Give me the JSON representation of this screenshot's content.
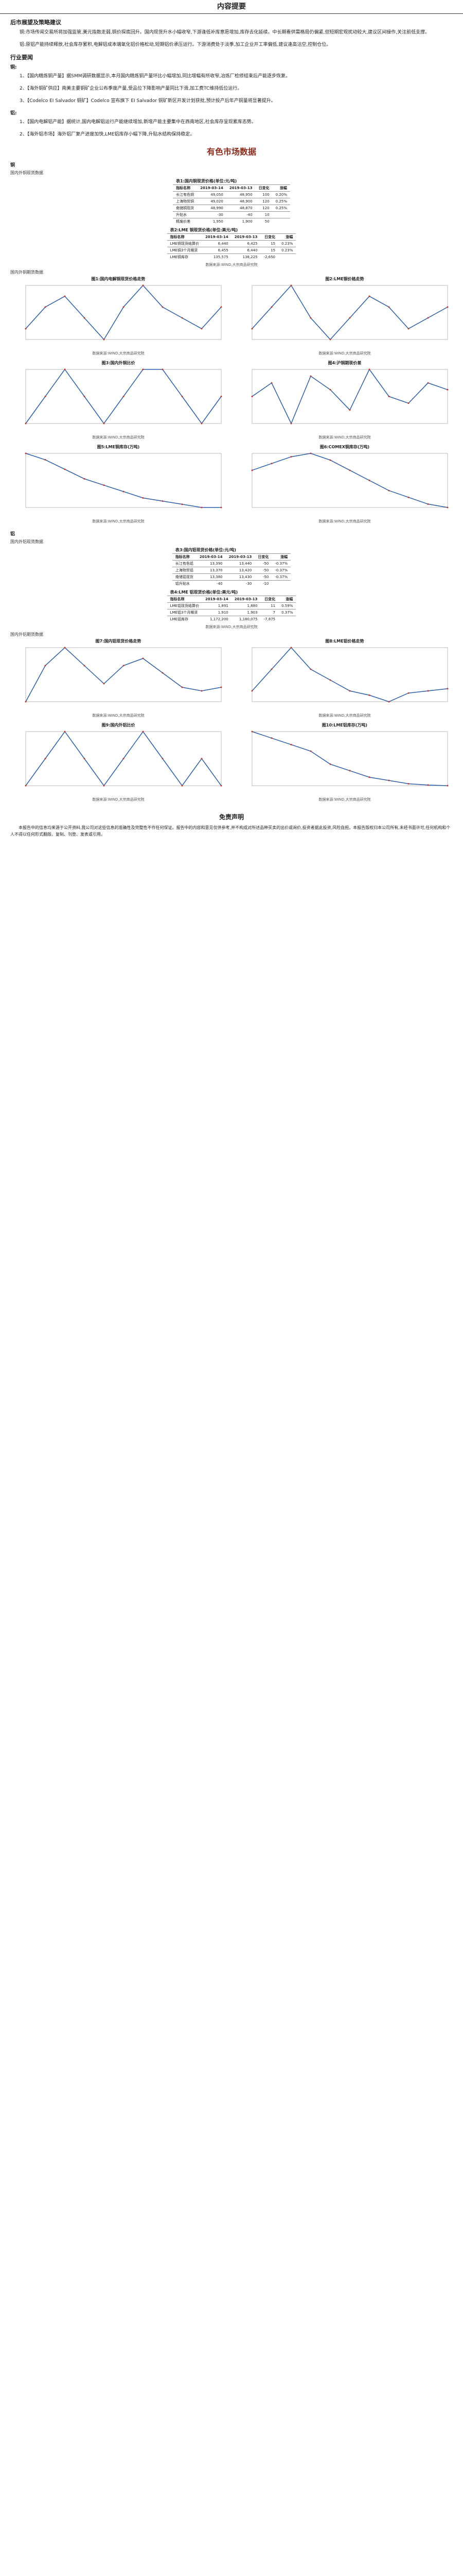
{
  "header": {
    "title": "内容提要"
  },
  "summary": {
    "section_title": "后市展望及策略建议",
    "paras": [
      "铜:市场传闻交易所将加强监管,美元指数走弱,铜价探底回升。国内现货升水小幅收窄,下游逢低补库意愿增加,库存去化延续。中长期看供需格局仍偏紧,但短期宏观扰动较大,建议区间操作,关注前低支撑。",
      "铝:原铝产能持续释放,社会库存累积,电解铝成本端氧化铝价格松动,短期铝价承压运行。下游消费处于淡季,加工企业开工率偏低,建议逢高沽空,控制仓位。"
    ]
  },
  "industry": {
    "section_title": "行业要闻",
    "sub1": "铜:",
    "news1": [
      "1、【国内精炼铜产量】据SMM调研数据显示,本月国内精炼铜产量环比小幅增加,同比增幅有所收窄,冶炼厂检修结束后产能逐步恢复。",
      "2、【海外铜矿供应】南美主要铜矿企业公布季度产量,受品位下降影响产量同比下滑,加工费TC维持低位运行。",
      "3、【Codelco EI Salvador 铜矿】Codelco 宣布旗下 EI Salvador 铜矿新区开发计划获批,预计投产后年产铜量将显著提升。"
    ],
    "sub2": "铝:",
    "news2": [
      "1、【国内电解铝产能】据统计,国内电解铝运行产能继续增加,新增产能主要集中在西南地区,社会库存呈现累库态势。",
      "2、【海外铝市场】海外铝厂复产进度加快,LME铝库存小幅下降,升贴水结构保持稳定。"
    ]
  },
  "market": {
    "title": "有色市场数据",
    "part1": "铜",
    "part2": "铝",
    "sub_a": "国内外铜现货数据",
    "sub_b": "国内外铜期货数据",
    "sub_c": "国内外铝现货数据",
    "sub_d": "国内外铝期货数据"
  },
  "tables": {
    "t1": {
      "caption": "表1:国内铜现货价格(单位:元/吨)",
      "cols": [
        "指标名称",
        "2019-03-14",
        "2019-03-13",
        "日变化",
        "涨幅"
      ],
      "rows": [
        [
          "长江有色铜",
          "49,050",
          "48,950",
          "100",
          "0.20%"
        ],
        [
          "上海物贸铜",
          "49,020",
          "48,900",
          "120",
          "0.25%"
        ],
        [
          "南储铜现货",
          "48,990",
          "48,870",
          "120",
          "0.25%"
        ],
        [
          "升贴水",
          "-30",
          "-40",
          "10",
          ""
        ],
        [
          "精废价差",
          "1,950",
          "1,900",
          "50",
          ""
        ]
      ]
    },
    "t2": {
      "caption": "表2:LME 铜现货价格(单位:美元/吨)",
      "cols": [
        "指标名称",
        "2019-03-14",
        "2019-03-13",
        "日变化",
        "涨幅"
      ],
      "rows": [
        [
          "LME铜现货结算价",
          "6,440",
          "6,425",
          "15",
          "0.23%"
        ],
        [
          "LME铜3个月期货",
          "6,455",
          "6,440",
          "15",
          "0.23%"
        ],
        [
          "LME铜库存",
          "135,575",
          "138,225",
          "-2,650",
          ""
        ]
      ]
    },
    "t3": {
      "caption": "表3:国内铝现货价格(单位:元/吨)",
      "cols": [
        "指标名称",
        "2019-03-14",
        "2019-03-13",
        "日变化",
        "涨幅"
      ],
      "rows": [
        [
          "长江有色铝",
          "13,390",
          "13,440",
          "-50",
          "-0.37%"
        ],
        [
          "上海物贸铝",
          "13,370",
          "13,420",
          "-50",
          "-0.37%"
        ],
        [
          "南储铝现货",
          "13,380",
          "13,430",
          "-50",
          "-0.37%"
        ],
        [
          "铝升贴水",
          "-40",
          "-30",
          "-10",
          ""
        ]
      ]
    },
    "t4": {
      "caption": "表4:LME 铝现货价格(单位:美元/吨)",
      "cols": [
        "指标名称",
        "2019-03-14",
        "2019-03-13",
        "日变化",
        "涨幅"
      ],
      "rows": [
        [
          "LME铝现货结算价",
          "1,891",
          "1,880",
          "11",
          "0.59%"
        ],
        [
          "LME铝3个月期货",
          "1,910",
          "1,903",
          "7",
          "0.37%"
        ],
        [
          "LME铝库存",
          "1,172,200",
          "1,180,075",
          "-7,875",
          ""
        ]
      ]
    }
  },
  "src_label": "数据来源:WIND,大宗商品研究院",
  "charts": [
    {
      "title": "图1:国内电解铜现货价格走势",
      "series": [
        {
          "name": "现货",
          "values": [
            48,
            50,
            51,
            49,
            47,
            50,
            52,
            50,
            49,
            48,
            50
          ]
        }
      ]
    },
    {
      "title": "图2:LME铜价格走势",
      "series": [
        {
          "name": "LME",
          "values": [
            62,
            64,
            66,
            63,
            61,
            63,
            65,
            64,
            62,
            63,
            64
          ]
        }
      ]
    },
    {
      "title": "图3:国内外铜比价",
      "series": [
        {
          "name": "比价",
          "values": [
            7.6,
            7.7,
            7.8,
            7.7,
            7.6,
            7.7,
            7.8,
            7.8,
            7.7,
            7.6,
            7.7
          ]
        }
      ]
    },
    {
      "title": "图4:沪铜期现价差",
      "series": [
        {
          "name": "价差",
          "values": [
            0,
            10,
            -20,
            15,
            5,
            -10,
            20,
            0,
            -5,
            10,
            5
          ]
        }
      ]
    },
    {
      "title": "图5:LME铜库存(万吨)",
      "series": [
        {
          "name": "库存",
          "values": [
            30,
            28,
            25,
            22,
            20,
            18,
            16,
            15,
            14,
            13,
            13
          ]
        }
      ]
    },
    {
      "title": "图6:COMEX铜库存(万吨)",
      "series": [
        {
          "name": "库存",
          "values": [
            20,
            22,
            24,
            25,
            23,
            20,
            17,
            14,
            12,
            10,
            9
          ]
        }
      ]
    },
    {
      "title": "图7:国内铝现货价格走势",
      "series": [
        {
          "name": "现货",
          "values": [
            13,
            14,
            14.5,
            14,
            13.5,
            14,
            14.2,
            13.8,
            13.4,
            13.3,
            13.4
          ]
        }
      ]
    },
    {
      "title": "图8:LME铝价格走势",
      "series": [
        {
          "name": "LME",
          "values": [
            19,
            20,
            21,
            20,
            19.5,
            19,
            18.8,
            18.5,
            18.9,
            19,
            19.1
          ]
        }
      ]
    },
    {
      "title": "图9:国内外铝比价",
      "series": [
        {
          "name": "比价",
          "values": [
            7,
            7.1,
            7.2,
            7.1,
            7.0,
            7.1,
            7.2,
            7.1,
            7.0,
            7.1,
            7.0
          ]
        }
      ]
    },
    {
      "title": "图10:LME铝库存(万吨)",
      "series": [
        {
          "name": "库存",
          "values": [
            200,
            190,
            180,
            170,
            150,
            140,
            130,
            125,
            120,
            118,
            117
          ]
        }
      ]
    }
  ],
  "disclaimer": {
    "title": "免责声明",
    "text": "本报告中的信息均来源于公开资料,我公司对这些信息的准确性及完整性不作任何保证。报告中的内容和意见仅供参考,并不构成对所述品种买卖的出价或询价,投资者据此投资,风险自担。本报告版权归本公司所有,未经书面许可,任何机构和个人不得以任何形式翻版、复制、刊登、发表或引用。"
  }
}
